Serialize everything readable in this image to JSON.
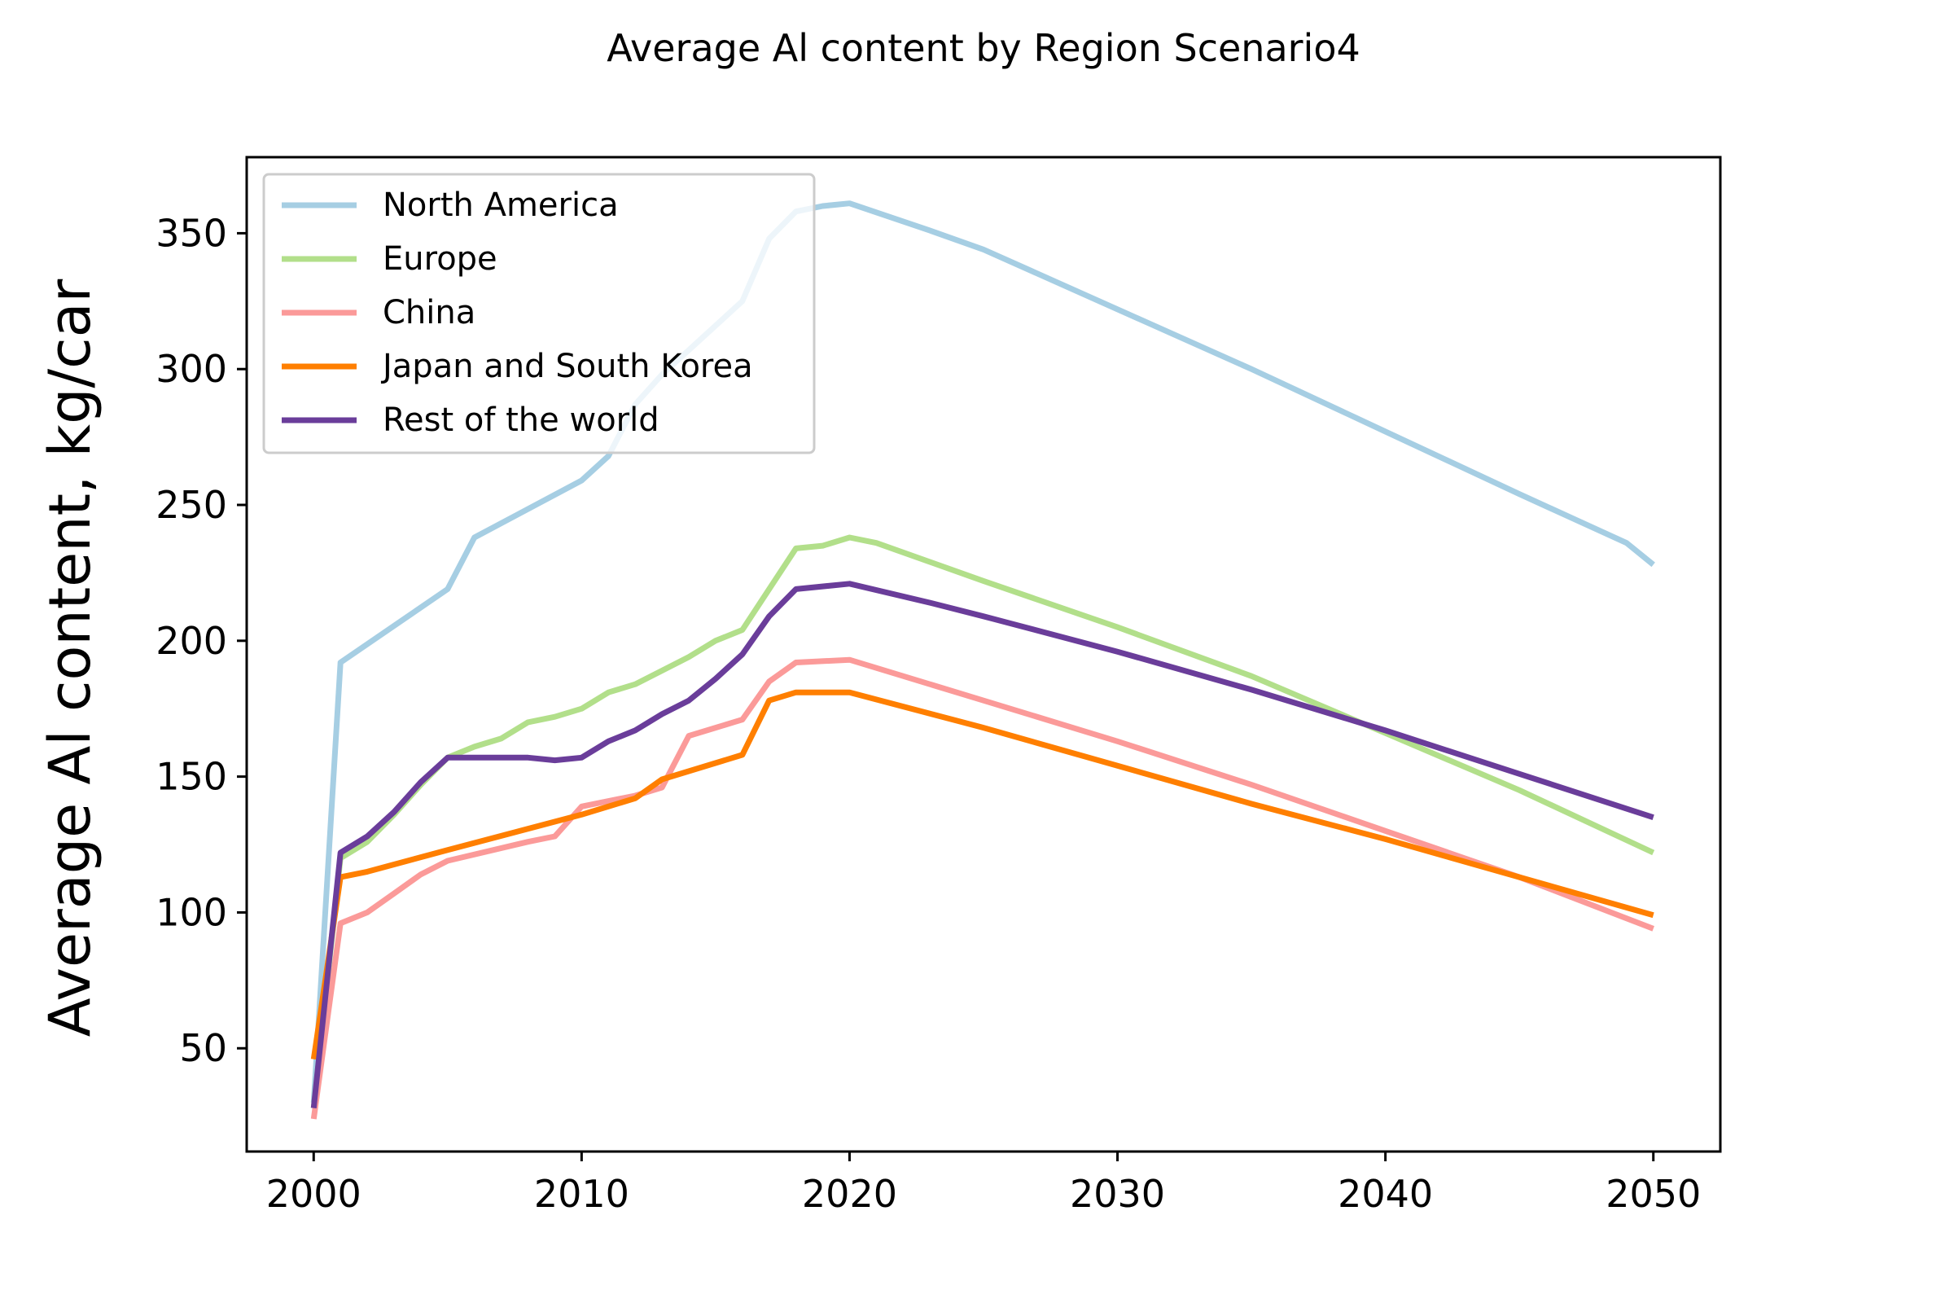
{
  "chart_data": {
    "type": "line",
    "title": "Average Al content by Region Scenario4",
    "xlabel": "",
    "ylabel": "Average Al content, kg/car",
    "xlim": [
      1997.5,
      2052.5
    ],
    "ylim": [
      12,
      378
    ],
    "xticks": [
      2000,
      2010,
      2020,
      2030,
      2040,
      2050
    ],
    "yticks": [
      50,
      100,
      150,
      200,
      250,
      300,
      350
    ],
    "grid": false,
    "legend_position": "top-left",
    "series": [
      {
        "name": "North America",
        "color": "#a6cee3",
        "points": [
          [
            2000,
            30
          ],
          [
            2001,
            192
          ],
          [
            2005,
            219
          ],
          [
            2006,
            238
          ],
          [
            2010,
            259
          ],
          [
            2011,
            268
          ],
          [
            2012,
            287
          ],
          [
            2013,
            298
          ],
          [
            2016,
            325
          ],
          [
            2017,
            348
          ],
          [
            2018,
            358
          ],
          [
            2019,
            360
          ],
          [
            2020,
            361
          ],
          [
            2023,
            351
          ],
          [
            2025,
            344
          ],
          [
            2030,
            322
          ],
          [
            2035,
            300
          ],
          [
            2040,
            277
          ],
          [
            2045,
            254
          ],
          [
            2049,
            236
          ],
          [
            2050,
            228
          ]
        ]
      },
      {
        "name": "Europe",
        "color": "#b2df8a",
        "points": [
          [
            2000,
            28
          ],
          [
            2001,
            120
          ],
          [
            2002,
            126
          ],
          [
            2003,
            136
          ],
          [
            2004,
            147
          ],
          [
            2005,
            157
          ],
          [
            2006,
            161
          ],
          [
            2007,
            164
          ],
          [
            2008,
            170
          ],
          [
            2009,
            172
          ],
          [
            2010,
            175
          ],
          [
            2011,
            181
          ],
          [
            2012,
            184
          ],
          [
            2013,
            189
          ],
          [
            2014,
            194
          ],
          [
            2015,
            200
          ],
          [
            2016,
            204
          ],
          [
            2017,
            219
          ],
          [
            2018,
            234
          ],
          [
            2019,
            235
          ],
          [
            2020,
            238
          ],
          [
            2021,
            236
          ],
          [
            2025,
            222
          ],
          [
            2030,
            205
          ],
          [
            2035,
            187
          ],
          [
            2040,
            166
          ],
          [
            2045,
            145
          ],
          [
            2050,
            122
          ]
        ]
      },
      {
        "name": "China",
        "color": "#fb9a99",
        "points": [
          [
            2000,
            24
          ],
          [
            2001,
            96
          ],
          [
            2002,
            100
          ],
          [
            2003,
            107
          ],
          [
            2004,
            114
          ],
          [
            2005,
            119
          ],
          [
            2008,
            126
          ],
          [
            2009,
            128
          ],
          [
            2010,
            139
          ],
          [
            2012,
            143
          ],
          [
            2013,
            146
          ],
          [
            2014,
            165
          ],
          [
            2015,
            168
          ],
          [
            2016,
            171
          ],
          [
            2017,
            185
          ],
          [
            2018,
            192
          ],
          [
            2020,
            193
          ],
          [
            2025,
            178
          ],
          [
            2030,
            163
          ],
          [
            2035,
            147
          ],
          [
            2040,
            130
          ],
          [
            2045,
            113
          ],
          [
            2050,
            94
          ]
        ]
      },
      {
        "name": "Japan and South Korea",
        "color": "#ff7f00",
        "points": [
          [
            2000,
            46
          ],
          [
            2001,
            113
          ],
          [
            2002,
            115
          ],
          [
            2005,
            123
          ],
          [
            2010,
            136
          ],
          [
            2012,
            142
          ],
          [
            2013,
            149
          ],
          [
            2016,
            158
          ],
          [
            2017,
            178
          ],
          [
            2018,
            181
          ],
          [
            2020,
            181
          ],
          [
            2025,
            168
          ],
          [
            2030,
            154
          ],
          [
            2035,
            140
          ],
          [
            2040,
            127
          ],
          [
            2045,
            113
          ],
          [
            2050,
            99
          ]
        ]
      },
      {
        "name": "Rest of the world",
        "color": "#6a3d9a",
        "points": [
          [
            2000,
            28
          ],
          [
            2001,
            122
          ],
          [
            2002,
            128
          ],
          [
            2003,
            137
          ],
          [
            2004,
            148
          ],
          [
            2005,
            157
          ],
          [
            2008,
            157
          ],
          [
            2009,
            156
          ],
          [
            2010,
            157
          ],
          [
            2011,
            163
          ],
          [
            2012,
            167
          ],
          [
            2013,
            173
          ],
          [
            2014,
            178
          ],
          [
            2015,
            186
          ],
          [
            2016,
            195
          ],
          [
            2017,
            209
          ],
          [
            2018,
            219
          ],
          [
            2020,
            221
          ],
          [
            2023,
            214
          ],
          [
            2025,
            209
          ],
          [
            2030,
            196
          ],
          [
            2035,
            182
          ],
          [
            2040,
            167
          ],
          [
            2045,
            151
          ],
          [
            2050,
            135
          ]
        ]
      }
    ]
  }
}
